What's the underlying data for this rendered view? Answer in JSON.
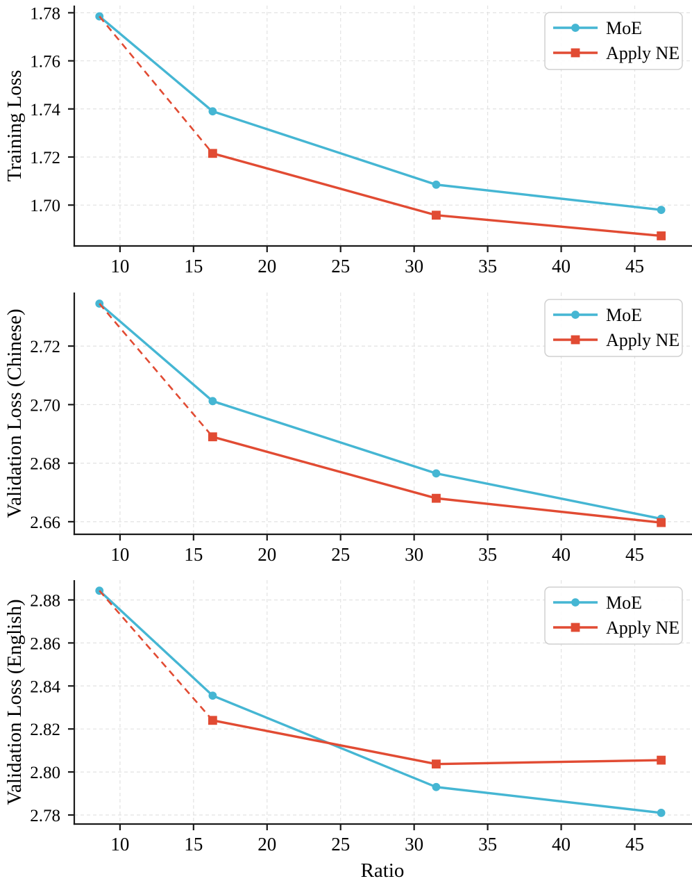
{
  "figure": {
    "xlabel": "Ratio",
    "colors": {
      "moe": "#45B6D3",
      "apply_ne": "#E14B33",
      "grid": "#E2E2E2",
      "axis": "#1a1a1a",
      "legend_border": "#D0D0D0"
    },
    "legend": {
      "labels": [
        "MoE",
        "Apply NE"
      ],
      "position": "upper right"
    }
  },
  "chart_data": [
    {
      "type": "line",
      "id": "training-loss",
      "ylabel": "Training Loss",
      "xlabel": "",
      "x": [
        8.6,
        16.3,
        31.5,
        46.8
      ],
      "series": [
        {
          "name": "MoE",
          "color": "#45B6D3",
          "marker": "circle",
          "linestyle": "solid",
          "values": [
            1.7785,
            1.739,
            1.7085,
            1.698
          ]
        },
        {
          "name": "Apply NE",
          "color": "#E14B33",
          "marker": "square",
          "linestyle": "solid",
          "first_segment": "dashed",
          "marker_on_first_point": false,
          "values": [
            1.7785,
            1.7215,
            1.6958,
            1.6872
          ]
        }
      ],
      "xlim": [
        6.89,
        48.8
      ],
      "ylim": [
        1.683,
        1.783
      ],
      "xticks": [
        10,
        15,
        20,
        25,
        30,
        35,
        40,
        45
      ],
      "xtick_labels": [
        "10",
        "15",
        "20",
        "25",
        "30",
        "35",
        "40",
        "45"
      ],
      "yticks": [
        1.7,
        1.72,
        1.74,
        1.76,
        1.78
      ],
      "ytick_labels": [
        "1.70",
        "1.72",
        "1.74",
        "1.76",
        "1.78"
      ],
      "grid": true,
      "legend_position": "upper right"
    },
    {
      "type": "line",
      "id": "validation-loss-chinese",
      "ylabel": "Validation Loss (Chinese)",
      "xlabel": "",
      "x": [
        8.6,
        16.3,
        31.5,
        46.8
      ],
      "series": [
        {
          "name": "MoE",
          "color": "#45B6D3",
          "marker": "circle",
          "linestyle": "solid",
          "values": [
            2.7345,
            2.7012,
            2.6765,
            2.661
          ]
        },
        {
          "name": "Apply NE",
          "color": "#E14B33",
          "marker": "square",
          "linestyle": "solid",
          "first_segment": "dashed",
          "marker_on_first_point": false,
          "values": [
            2.7345,
            2.689,
            2.668,
            2.6597
          ]
        }
      ],
      "xlim": [
        6.89,
        48.8
      ],
      "ylim": [
        2.6557,
        2.7383
      ],
      "xticks": [
        10,
        15,
        20,
        25,
        30,
        35,
        40,
        45
      ],
      "xtick_labels": [
        "10",
        "15",
        "20",
        "25",
        "30",
        "35",
        "40",
        "45"
      ],
      "yticks": [
        2.66,
        2.68,
        2.7,
        2.72
      ],
      "ytick_labels": [
        "2.66",
        "2.68",
        "2.70",
        "2.72"
      ],
      "grid": true,
      "legend_position": "upper right"
    },
    {
      "type": "line",
      "id": "validation-loss-english",
      "ylabel": "Validation Loss (English)",
      "xlabel": "Ratio",
      "x": [
        8.6,
        16.3,
        31.5,
        46.8
      ],
      "series": [
        {
          "name": "MoE",
          "color": "#45B6D3",
          "marker": "circle",
          "linestyle": "solid",
          "values": [
            2.8843,
            2.8355,
            2.793,
            2.781
          ]
        },
        {
          "name": "Apply NE",
          "color": "#E14B33",
          "marker": "square",
          "linestyle": "solid",
          "first_segment": "dashed",
          "marker_on_first_point": false,
          "values": [
            2.8843,
            2.824,
            2.8037,
            2.8055
          ]
        }
      ],
      "xlim": [
        6.89,
        48.8
      ],
      "ylim": [
        2.7758,
        2.8892
      ],
      "xticks": [
        10,
        15,
        20,
        25,
        30,
        35,
        40,
        45
      ],
      "xtick_labels": [
        "10",
        "15",
        "20",
        "25",
        "30",
        "35",
        "40",
        "45"
      ],
      "yticks": [
        2.78,
        2.8,
        2.82,
        2.84,
        2.86,
        2.88
      ],
      "ytick_labels": [
        "2.78",
        "2.80",
        "2.82",
        "2.84",
        "2.86",
        "2.88"
      ],
      "grid": true,
      "legend_position": "upper right"
    }
  ]
}
